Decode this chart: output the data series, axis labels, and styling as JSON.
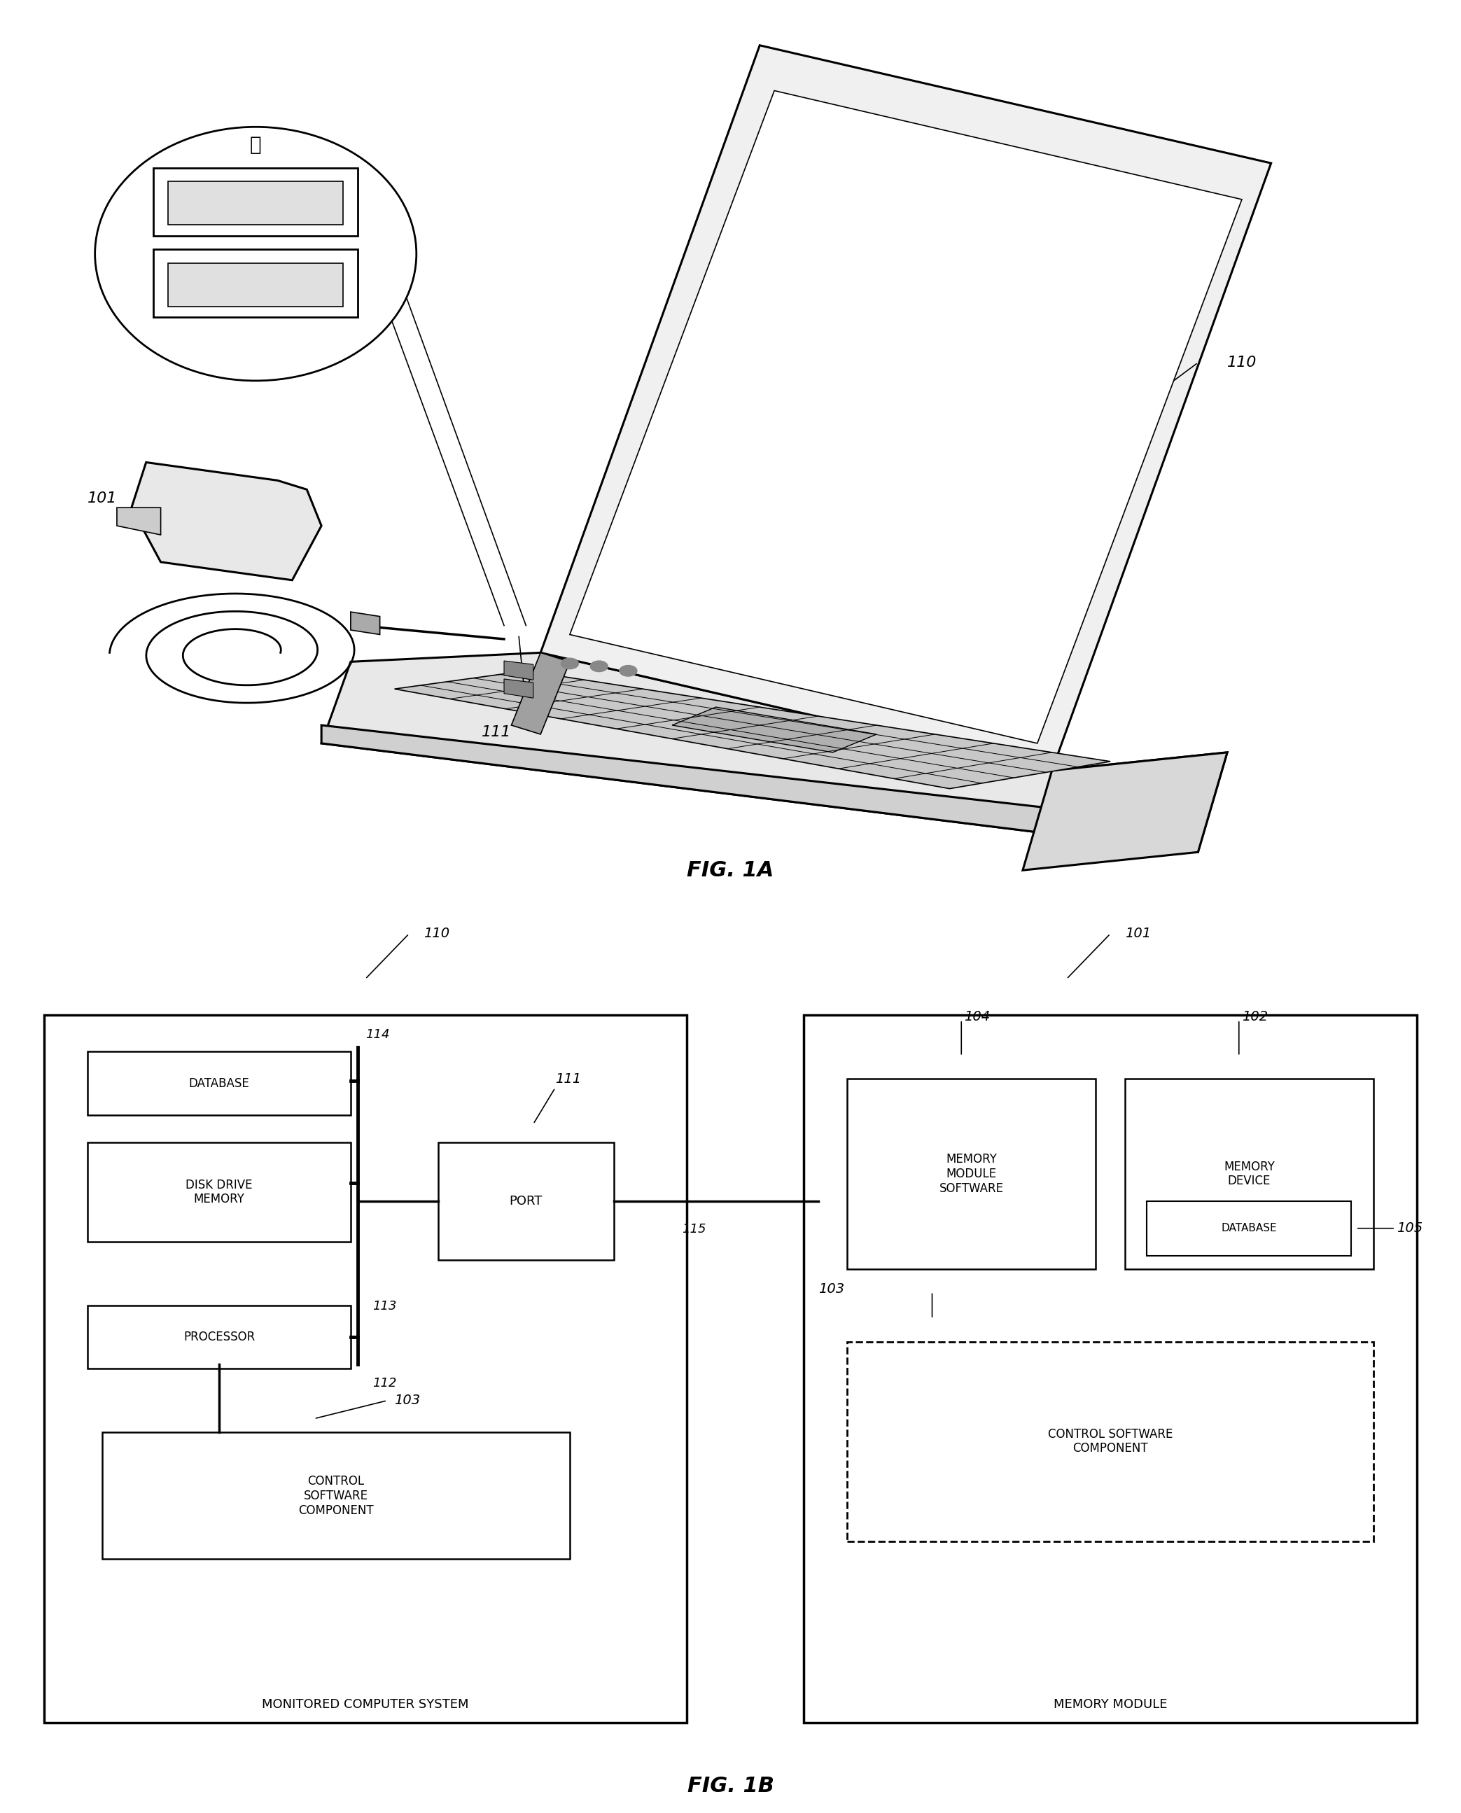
{
  "fig_width": 20.87,
  "fig_height": 25.9,
  "background_color": "#ffffff",
  "fig1a_label": "FIG. 1A",
  "fig1b_label": "FIG. 1B",
  "label_110_fig1a": "110",
  "label_101_fig1a": "101",
  "label_111_fig1a": "111",
  "label_110_fig1b": "110",
  "label_101_fig1b": "101",
  "label_111_fig1b": "111",
  "label_112": "112",
  "label_113": "113",
  "label_114": "114",
  "label_115": "115",
  "label_103_left": "103",
  "label_103_right": "103",
  "label_104": "104",
  "label_102": "102",
  "label_105": "105",
  "box_database_text": "DATABASE",
  "box_diskdrive_text": "DISK DRIVE\nMEMORY",
  "box_processor_text": "PROCESSOR",
  "box_port_text": "PORT",
  "box_control_left_text": "CONTROL\nSOFTWARE\nCOMPONENT",
  "box_memmodule_text": "MEMORY\nMODULE\nSOFTWARE",
  "box_memdevice_text": "MEMORY\nDEVICE",
  "box_database_right_text": "DATABASE",
  "box_control_right_text": "CONTROL SOFTWARE\nCOMPONENT",
  "label_monitored": "MONITORED COMPUTER SYSTEM",
  "label_memory_module": "MEMORY MODULE"
}
